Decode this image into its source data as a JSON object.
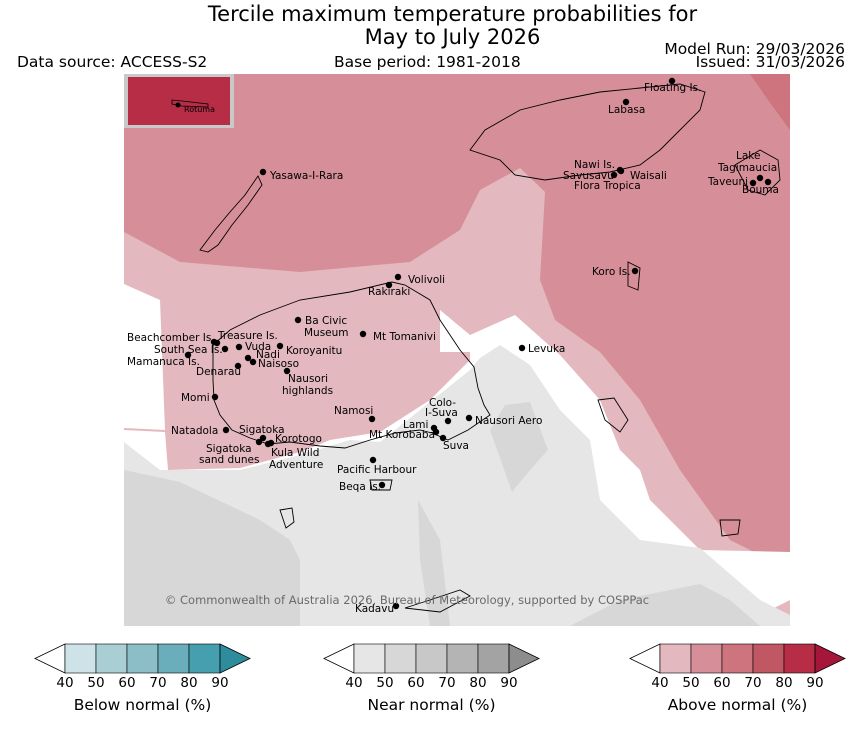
{
  "title": {
    "line1": "Tercile maximum temperature probabilities for",
    "line2": "May to July 2026"
  },
  "header": {
    "data_source": "Data source: ACCESS-S2",
    "base_period": "Base period: 1981-2018",
    "model_run": "Model Run: 29/03/2026",
    "issued": "Issued: 31/03/2026"
  },
  "copyright": "© Commonwealth of Australia 2026, Bureau of Meteorology, supported by COSPPac",
  "inset": {
    "label": "Rotuma"
  },
  "places": [
    {
      "name": "Floating Is."
    },
    {
      "name": "Labasa"
    },
    {
      "name": "Yasawa-I-Rara"
    },
    {
      "name": "Nawi Is."
    },
    {
      "name": "Savusavu"
    },
    {
      "name": "Waisali"
    },
    {
      "name": "Flora Tropica"
    },
    {
      "name": "Lake"
    },
    {
      "name": "Tagimaucia"
    },
    {
      "name": "Taveuni"
    },
    {
      "name": "Bouma"
    },
    {
      "name": "Koro Is."
    },
    {
      "name": "Volivoli"
    },
    {
      "name": "Rakiraki"
    },
    {
      "name": "Ba Civic"
    },
    {
      "name": "Museum"
    },
    {
      "name": "Mt Tomanivi"
    },
    {
      "name": "Beachcomber Is."
    },
    {
      "name": "Treasure Is."
    },
    {
      "name": "South Sea Is."
    },
    {
      "name": "Vuda"
    },
    {
      "name": "Koroyanitu"
    },
    {
      "name": "Nadi"
    },
    {
      "name": "Mamanuca Is."
    },
    {
      "name": "Naisoso"
    },
    {
      "name": "Denarau"
    },
    {
      "name": "Nausori"
    },
    {
      "name": "highlands"
    },
    {
      "name": "Levuka"
    },
    {
      "name": "Momi"
    },
    {
      "name": "Namosi"
    },
    {
      "name": "Colo-"
    },
    {
      "name": "I-Suva"
    },
    {
      "name": "Lami"
    },
    {
      "name": "Nausori Aero"
    },
    {
      "name": "Natadola"
    },
    {
      "name": "Sigatoka"
    },
    {
      "name": "Mt Korobaba"
    },
    {
      "name": "Korotogo"
    },
    {
      "name": "Suva"
    },
    {
      "name": "Sigatoka"
    },
    {
      "name": "sand dunes"
    },
    {
      "name": "Kula Wild"
    },
    {
      "name": "Adventure"
    },
    {
      "name": "Pacific Harbour"
    },
    {
      "name": "Beqa Is."
    },
    {
      "name": "Kadavu"
    }
  ],
  "colorbars": [
    {
      "label": "Below normal (%)",
      "ticks": [
        "40",
        "50",
        "60",
        "70",
        "80",
        "90"
      ],
      "colors": [
        "#cde3e8",
        "#a9ced4",
        "#8cbec7",
        "#6baebb",
        "#459fae",
        "#2e8c9d"
      ]
    },
    {
      "label": "Near normal (%)",
      "ticks": [
        "40",
        "50",
        "60",
        "70",
        "80",
        "90"
      ],
      "colors": [
        "#e6e6e6",
        "#d7d7d7",
        "#c8c8c8",
        "#b4b4b4",
        "#a3a3a3",
        "#8d8d8d"
      ]
    },
    {
      "label": "Above normal (%)",
      "ticks": [
        "40",
        "50",
        "60",
        "70",
        "80",
        "90"
      ],
      "colors": [
        "#e3b9bf",
        "#d68f98",
        "#cd747e",
        "#c25764",
        "#b62d45",
        "#a6163a"
      ]
    }
  ],
  "region_colors": {
    "above_50": "#d68f98",
    "above_40": "#e3b9bf",
    "above_60": "#cd747e",
    "near_40": "#e6e6e6",
    "near_50": "#d7d7d7",
    "no_dominant": "#ffffff"
  }
}
